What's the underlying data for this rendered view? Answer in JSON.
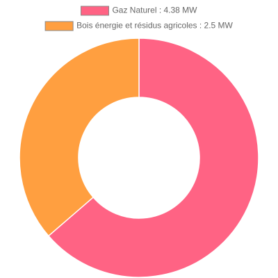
{
  "chart_data": {
    "type": "doughnut",
    "categories": [
      "Gaz Naturel : 4.38 MW",
      "Bois énergie et résidus agricoles : 2.5 MW"
    ],
    "values": [
      4.38,
      2.5
    ],
    "colors": [
      "#ff6384",
      "#ff9f40"
    ],
    "legend": "top"
  }
}
